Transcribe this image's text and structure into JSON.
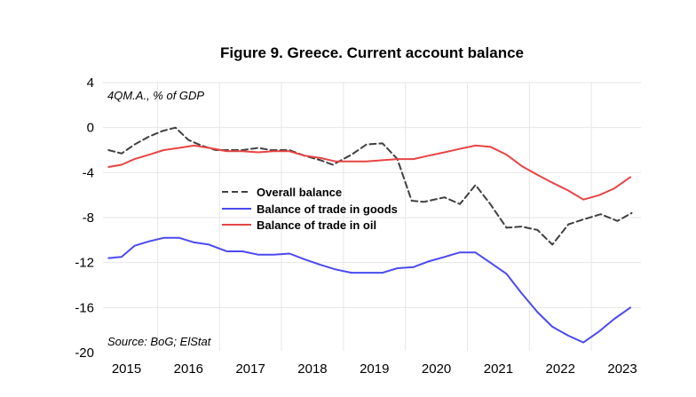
{
  "chart_data": {
    "type": "line",
    "title": "Figure 9. Greece. Current account balance",
    "unit_note": "4QM.A., % of GDP",
    "source": "Source: BoG; ElStat",
    "xlabel": "",
    "ylabel": "",
    "ylim": [
      -20,
      4
    ],
    "yticks": [
      4,
      0,
      -4,
      -8,
      -12,
      -16,
      -20
    ],
    "xlim": [
      2014.62,
      2023.3
    ],
    "xticks": [
      {
        "label": "2015",
        "value": 2015.0
      },
      {
        "label": "2016",
        "value": 2016.0
      },
      {
        "label": "2017",
        "value": 2017.0
      },
      {
        "label": "2018",
        "value": 2018.0
      },
      {
        "label": "2019",
        "value": 2019.0
      },
      {
        "label": "2020",
        "value": 2020.0
      },
      {
        "label": "2021",
        "value": 2021.0
      },
      {
        "label": "2022",
        "value": 2022.0
      },
      {
        "label": "2023",
        "value": 2023.0
      }
    ],
    "vgrid_x": [
      2015.5,
      2016.5,
      2017.5,
      2018.5,
      2019.5,
      2020.5,
      2021.5,
      2022.5
    ],
    "hgrid_y": [
      4,
      0,
      -4,
      -8,
      -12,
      -16
    ],
    "legend": {
      "position": "center-left"
    },
    "series": [
      {
        "name": "Overall balance",
        "color": "#404040",
        "dash": true,
        "x": [
          2014.71,
          2014.92,
          2015.13,
          2015.36,
          2015.58,
          2015.79,
          2016.0,
          2016.21,
          2016.44,
          2016.63,
          2016.87,
          2017.13,
          2017.33,
          2017.63,
          2017.87,
          2018.13,
          2018.33,
          2018.63,
          2018.87,
          2019.13,
          2019.37,
          2019.6,
          2019.8,
          2020.13,
          2020.38,
          2020.63,
          2020.87,
          2021.13,
          2021.37,
          2021.63,
          2021.87,
          2022.13,
          2022.35,
          2022.65,
          2022.92,
          2023.15
        ],
        "values": [
          -2.0,
          -2.3,
          -1.5,
          -0.8,
          -0.3,
          0.0,
          -1.1,
          -1.6,
          -2.0,
          -2.0,
          -2.0,
          -1.8,
          -2.0,
          -2.0,
          -2.5,
          -2.9,
          -3.3,
          -2.4,
          -1.5,
          -1.4,
          -2.8,
          -6.5,
          -6.6,
          -6.2,
          -6.8,
          -5.1,
          -6.8,
          -8.9,
          -8.8,
          -9.1,
          -10.4,
          -8.6,
          -8.2,
          -7.7,
          -8.3,
          -7.6
        ]
      },
      {
        "name": "Balance of trade in goods",
        "color": "#4a4af0",
        "dash": false,
        "x": [
          2014.71,
          2014.92,
          2015.13,
          2015.37,
          2015.6,
          2015.85,
          2016.09,
          2016.33,
          2016.62,
          2016.87,
          2017.13,
          2017.37,
          2017.63,
          2017.87,
          2018.13,
          2018.37,
          2018.63,
          2018.87,
          2019.13,
          2019.37,
          2019.63,
          2019.87,
          2020.13,
          2020.37,
          2020.63,
          2020.87,
          2021.13,
          2021.37,
          2021.63,
          2021.87,
          2022.13,
          2022.37,
          2022.63,
          2022.87,
          2023.13
        ],
        "values": [
          -11.6,
          -11.5,
          -10.5,
          -10.1,
          -9.8,
          -9.8,
          -10.2,
          -10.4,
          -11.0,
          -11.0,
          -11.3,
          -11.3,
          -11.2,
          -11.7,
          -12.2,
          -12.6,
          -12.9,
          -12.9,
          -12.9,
          -12.5,
          -12.4,
          -11.9,
          -11.5,
          -11.1,
          -11.1,
          -12.0,
          -13.0,
          -14.7,
          -16.4,
          -17.7,
          -18.5,
          -19.1,
          -18.1,
          -17.0,
          -16.0
        ]
      },
      {
        "name": "Balance of trade in oil",
        "color": "#e84444",
        "dash": false,
        "x": [
          2014.71,
          2014.92,
          2015.13,
          2015.37,
          2015.6,
          2015.85,
          2016.09,
          2016.33,
          2016.62,
          2016.87,
          2017.13,
          2017.37,
          2017.63,
          2017.87,
          2018.13,
          2018.37,
          2018.63,
          2018.87,
          2019.13,
          2019.37,
          2019.63,
          2019.87,
          2020.13,
          2020.37,
          2020.63,
          2020.87,
          2021.13,
          2021.37,
          2021.63,
          2021.87,
          2022.13,
          2022.37,
          2022.63,
          2022.87,
          2023.13
        ],
        "values": [
          -3.5,
          -3.3,
          -2.8,
          -2.4,
          -2.0,
          -1.8,
          -1.6,
          -1.8,
          -2.1,
          -2.1,
          -2.2,
          -2.1,
          -2.1,
          -2.5,
          -2.7,
          -3.0,
          -3.0,
          -3.0,
          -2.9,
          -2.8,
          -2.8,
          -2.5,
          -2.2,
          -1.9,
          -1.6,
          -1.7,
          -2.4,
          -3.4,
          -4.2,
          -4.9,
          -5.6,
          -6.4,
          -6.0,
          -5.4,
          -4.4
        ]
      }
    ]
  }
}
